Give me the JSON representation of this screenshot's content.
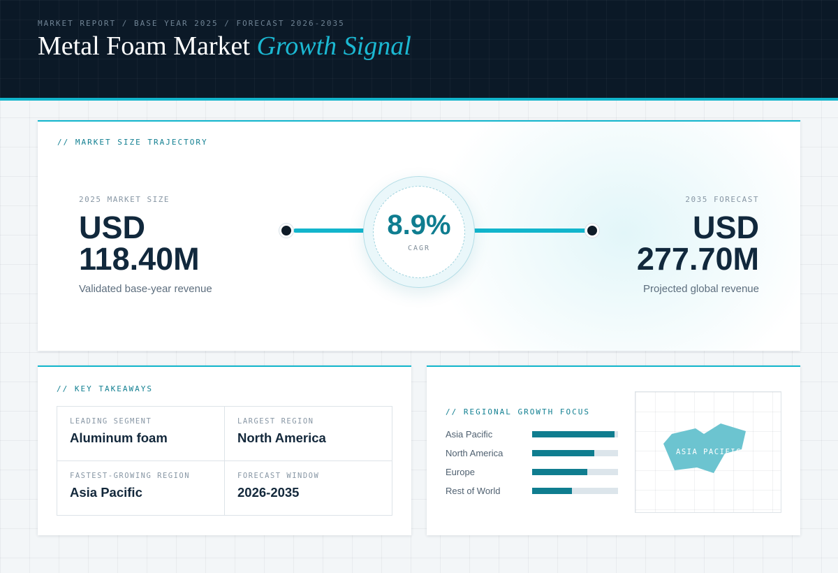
{
  "header": {
    "eyebrow": "MARKET REPORT / BASE YEAR 2025 / FORECAST 2026-2035",
    "title_main": "Metal Foam Market",
    "title_accent": "Growth Signal"
  },
  "trajectory": {
    "label": "// MARKET SIZE TRAJECTORY",
    "start": {
      "caption": "2025 MARKET SIZE",
      "currency": "USD",
      "value": "118.40M",
      "note": "Validated base-year revenue"
    },
    "end": {
      "caption": "2035 FORECAST",
      "currency": "USD",
      "value": "277.70M",
      "note": "Projected global revenue"
    },
    "cagr": {
      "value": "8.9%",
      "label": "CAGR"
    }
  },
  "takeaways": {
    "label": "// KEY TAKEAWAYS",
    "items": [
      {
        "caption": "LEADING SEGMENT",
        "value": "Aluminum foam"
      },
      {
        "caption": "LARGEST REGION",
        "value": "North America"
      },
      {
        "caption": "FASTEST-GROWING REGION",
        "value": "Asia Pacific"
      },
      {
        "caption": "FORECAST WINDOW",
        "value": "2026-2035"
      }
    ]
  },
  "regional": {
    "label": "// REGIONAL GROWTH FOCUS",
    "bars": [
      {
        "name": "Asia Pacific",
        "level": 0.96
      },
      {
        "name": "North America",
        "level": 0.72
      },
      {
        "name": "Europe",
        "level": 0.64
      },
      {
        "name": "Rest of World",
        "level": 0.46
      }
    ],
    "map_label": "ASIA PACIFIC"
  },
  "colors": {
    "header_bg": "#0b1927",
    "accent": "#12b5cc",
    "bar_fill": "#0f7d8f",
    "map_shape": "#6cc4d0"
  }
}
